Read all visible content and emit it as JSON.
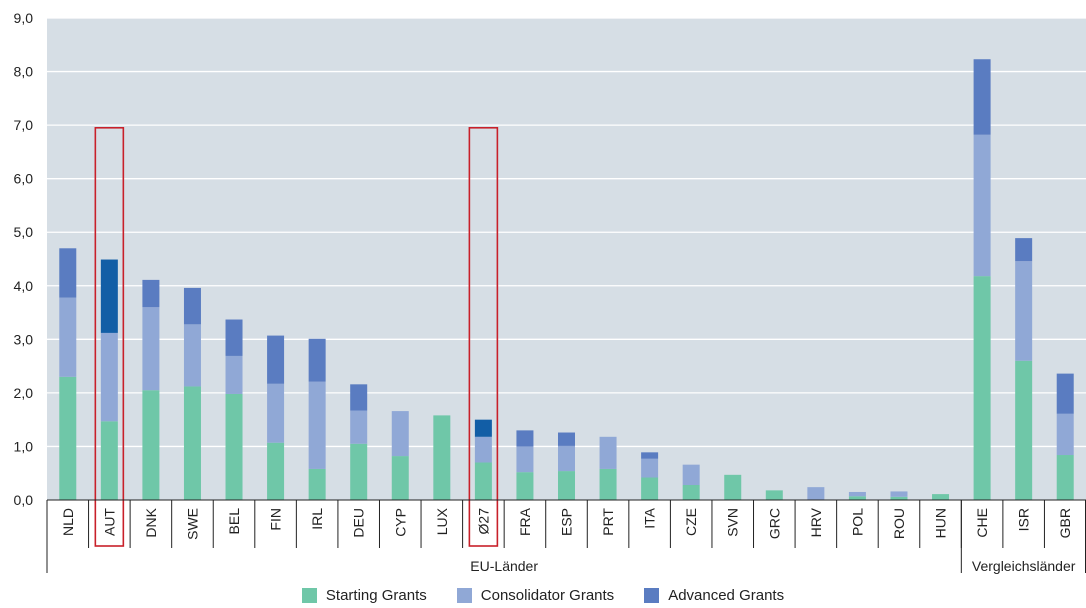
{
  "chart_data": {
    "type": "bar",
    "stacked": true,
    "categories": [
      "NLD",
      "AUT",
      "DNK",
      "SWE",
      "BEL",
      "FIN",
      "IRL",
      "DEU",
      "CYP",
      "LUX",
      "Ø27",
      "FRA",
      "ESP",
      "PRT",
      "ITA",
      "CZE",
      "SVN",
      "GRC",
      "HRV",
      "POL",
      "ROU",
      "HUN",
      "CHE",
      "ISR",
      "GBR"
    ],
    "series": [
      {
        "name": "Starting Grants",
        "color": "#6fc7a8",
        "values": [
          2.3,
          1.47,
          2.05,
          2.12,
          1.98,
          1.07,
          0.58,
          1.05,
          0.82,
          1.58,
          0.7,
          0.52,
          0.54,
          0.58,
          0.42,
          0.28,
          0.47,
          0.18,
          0.0,
          0.07,
          0.06,
          0.11,
          4.18,
          2.6,
          0.84
        ]
      },
      {
        "name": "Consolidator Grants",
        "color": "#90a8d6",
        "values": [
          1.48,
          1.65,
          1.55,
          1.16,
          0.71,
          1.1,
          1.63,
          0.62,
          0.84,
          0.0,
          0.48,
          0.48,
          0.47,
          0.6,
          0.35,
          0.38,
          0.0,
          0.0,
          0.24,
          0.08,
          0.1,
          0.0,
          2.64,
          1.86,
          0.77
        ]
      },
      {
        "name": "Advanced Grants",
        "color": "#5a7cc1",
        "values": [
          0.92,
          1.37,
          0.51,
          0.68,
          0.68,
          0.9,
          0.8,
          0.49,
          0.0,
          0.0,
          0.32,
          0.3,
          0.25,
          0.0,
          0.12,
          0.0,
          0.0,
          0.0,
          0.0,
          0.0,
          0.0,
          0.0,
          1.41,
          0.43,
          0.75
        ]
      }
    ],
    "highlight": {
      "categories": [
        "AUT",
        "Ø27"
      ],
      "advanced_color": "#125ea6",
      "outline_color": "#c8202a"
    },
    "ylim": [
      0,
      9
    ],
    "yticks": [
      "0,0",
      "1,0",
      "2,0",
      "3,0",
      "4,0",
      "5,0",
      "6,0",
      "7,0",
      "8,0",
      "9,0"
    ],
    "grid": true,
    "groups": [
      {
        "label": "EU-Länder",
        "first": 0,
        "last": 21
      },
      {
        "label": "Vergleichsländer",
        "first": 22,
        "last": 24
      }
    ],
    "legend_position": "bottom-center",
    "colors": {
      "plot_background": "#d6dee5",
      "gridline": "#ffffff"
    }
  }
}
